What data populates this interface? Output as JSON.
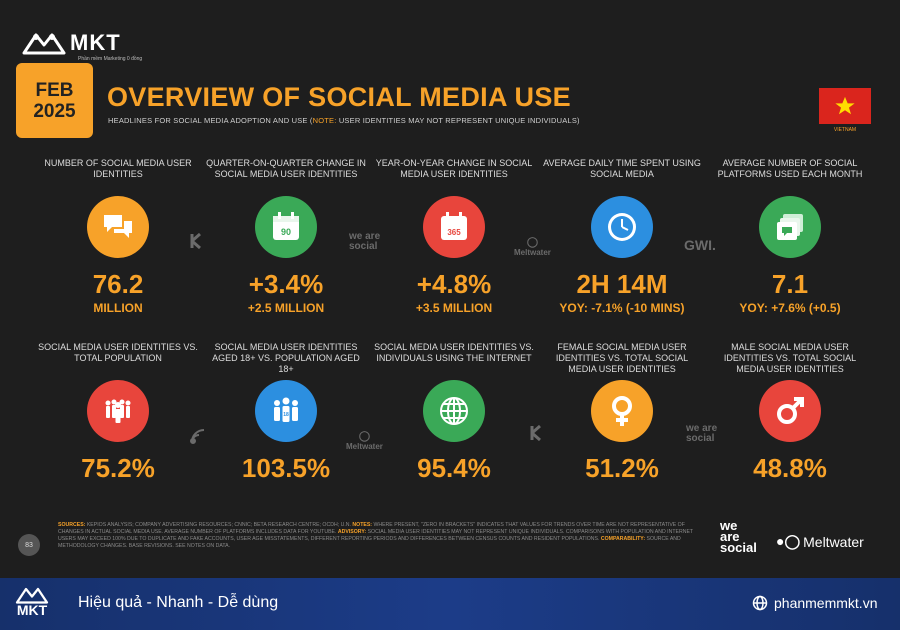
{
  "brand": {
    "name": "MKT",
    "tagline": "Phần mềm Marketing 0 đồng"
  },
  "date_badge": {
    "month": "FEB",
    "year": "2025"
  },
  "title": "OVERVIEW OF SOCIAL MEDIA USE",
  "subtitle_prefix": "HEADLINES FOR SOCIAL MEDIA ADOPTION AND USE (",
  "subtitle_note": "NOTE:",
  "subtitle_suffix": " USER IDENTITIES MAY NOT REPRESENT UNIQUE INDIVIDUALS)",
  "flag_label": "VIETNAM",
  "row1": [
    {
      "label": "NUMBER OF SOCIAL MEDIA USER IDENTITIES",
      "value": "76.2",
      "sub": "MILLION",
      "icon": "chat-bubbles-icon",
      "color": "#f7a229"
    },
    {
      "label": "QUARTER-ON-QUARTER CHANGE IN SOCIAL MEDIA USER IDENTITIES",
      "value": "+3.4%",
      "sub": "+2.5 MILLION",
      "icon": "calendar-90-icon",
      "color": "#3aa957"
    },
    {
      "label": "YEAR-ON-YEAR CHANGE IN SOCIAL MEDIA USER IDENTITIES",
      "value": "+4.8%",
      "sub": "+3.5 MILLION",
      "icon": "calendar-365-icon",
      "color": "#e8453c"
    },
    {
      "label": "AVERAGE DAILY TIME SPENT USING SOCIAL MEDIA",
      "value": "2H 14M",
      "sub": "YOY: -7.1% (-10 MINS)",
      "icon": "clock-icon",
      "color": "#2c8fe0"
    },
    {
      "label": "AVERAGE NUMBER OF SOCIAL PLATFORMS USED EACH MONTH",
      "value": "7.1",
      "sub": "YOY: +7.6% (+0.5)",
      "icon": "stacked-windows-icon",
      "color": "#3aa957"
    }
  ],
  "row2": [
    {
      "label": "SOCIAL MEDIA USER IDENTITIES vs. TOTAL POPULATION",
      "value": "75.2%",
      "icon": "people-group-icon",
      "color": "#e8453c"
    },
    {
      "label": "SOCIAL MEDIA USER IDENTITIES AGED 18+ vs. POPULATION AGED 18+",
      "value": "103.5%",
      "icon": "adults-icon",
      "color": "#2c8fe0"
    },
    {
      "label": "SOCIAL MEDIA USER IDENTITIES vs. INDIVIDUALS USING THE INTERNET",
      "value": "95.4%",
      "icon": "globe-icon",
      "color": "#3aa957"
    },
    {
      "label": "FEMALE SOCIAL MEDIA USER IDENTITIES vs. TOTAL SOCIAL MEDIA USER IDENTITIES",
      "value": "51.2%",
      "icon": "female-icon",
      "color": "#f7a229"
    },
    {
      "label": "MALE SOCIAL MEDIA USER IDENTITIES vs. TOTAL SOCIAL MEDIA USER IDENTITIES",
      "value": "48.8%",
      "icon": "male-icon",
      "color": "#e8453c"
    }
  ],
  "watermarks": {
    "was": "we are social",
    "meltwater": "Meltwater",
    "gwi": "GWI."
  },
  "notes": {
    "sources_label": "SOURCES:",
    "sources_text": " KEPIOS ANALYSIS; COMPANY ADVERTISING RESOURCES; CNNIC; BETA RESEARCH CENTRE; OCDH; U.N. ",
    "notes_label": "NOTES:",
    "notes_text": " WHERE PRESENT, \"ZERO IN BRACKETS\" INDICATES THAT VALUES FOR TRENDS OVER TIME ARE NOT REPRESENTATIVE OF CHANGES IN ACTUAL SOCIAL MEDIA USE. AVERAGE NUMBER OF PLATFORMS INCLUDES DATA FOR YOUTUBE. ",
    "advisory_label": "ADVISORY:",
    "advisory_text": " SOCIAL MEDIA USER IDENTITIES MAY NOT REPRESENT UNIQUE INDIVIDUALS. COMPARISONS WITH POPULATION AND INTERNET USERS MAY EXCEED 100% DUE TO DUPLICATE AND FAKE ACCOUNTS, USER AGE MISSTATEMENTS, DIFFERENT REPORTING PERIODS AND DIFFERENCES BETWEEN CENSUS COUNTS AND RESIDENT POPULATIONS. ",
    "comparability_label": "COMPARABILITY:",
    "comparability_text": " SOURCE AND METHODOLOGY CHANGES. BASE REVISIONS. SEE NOTES ON DATA."
  },
  "page_number": "83",
  "footer_logos": {
    "was": "we are social",
    "meltwater": "Meltwater"
  },
  "bottom_bar": {
    "brand": "MKT",
    "slogan": "Hiệu quả - Nhanh  - Dễ dùng",
    "site": "phanmemmkt.vn"
  }
}
